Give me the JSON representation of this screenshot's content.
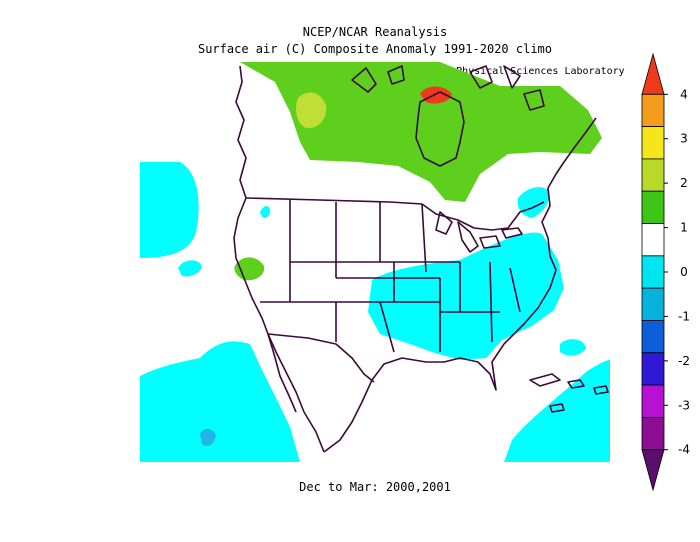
{
  "title_line1": "NCEP/NCAR Reanalysis",
  "title_line2": "Surface air (C) Composite Anomaly 1991-2020 climo",
  "credit": "NOAA Physical Sciences Laboratory",
  "footer": "Dec to Mar: 2000,2001",
  "colorbar": {
    "labels": [
      "4",
      "3",
      "2",
      "1",
      "0",
      "-1",
      "-2",
      "-3",
      "-4"
    ],
    "colors": [
      "#ee3a1c",
      "#f39c1d",
      "#f4e61a",
      "#b8d82a",
      "#3ec616",
      "#ffffff",
      "#00e6f0",
      "#05b2dc",
      "#0d5ed8",
      "#3019d6",
      "#b712d4",
      "#8a0d92",
      "#5b0f6a"
    ]
  },
  "map_colors": {
    "warm_anomaly": "#5fcf1e",
    "warm_anomaly_strong": "#c0de36",
    "hot_anomaly": "#ee3a1c",
    "cold_anomaly": "#00ffff",
    "cold_anomaly_strong": "#22b6e6",
    "borders": "#3a0a3a"
  }
}
